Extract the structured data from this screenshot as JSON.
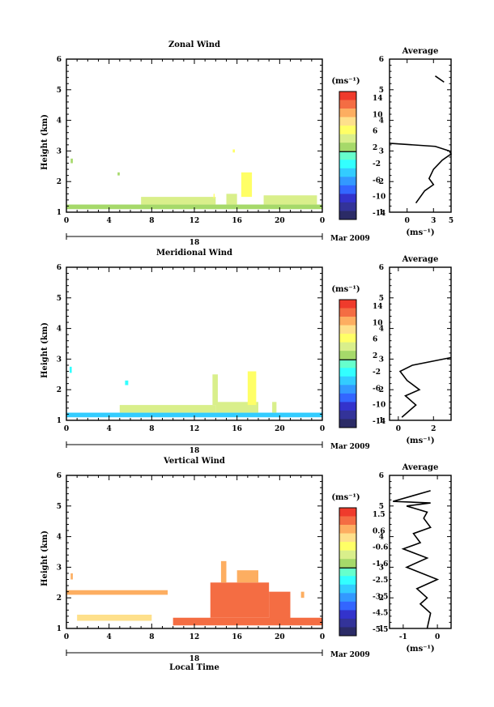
{
  "panels": [
    {
      "title": "Zonal Wind",
      "ylabel": "Height (km)",
      "yticks": [
        "1",
        "2",
        "3",
        "4",
        "5",
        "6"
      ],
      "xticks": [
        "0",
        "4",
        "8",
        "12",
        "16",
        "20",
        "0"
      ],
      "date_day": "18",
      "date_month": "Mar 2009",
      "cb_unit": "(ms⁻¹)",
      "cb_ticks": [
        "14",
        "10",
        "6",
        "2",
        "-2",
        "-6",
        "-10",
        "-14"
      ],
      "avg_title": "Average",
      "avg_xticks": [
        "0",
        "3",
        "5"
      ],
      "avg_unit": "(ms⁻¹)"
    },
    {
      "title": "Meridional Wind",
      "ylabel": "Height (km)",
      "yticks": [
        "1",
        "2",
        "3",
        "4",
        "5",
        "6"
      ],
      "xticks": [
        "0",
        "4",
        "8",
        "12",
        "16",
        "20",
        "0"
      ],
      "date_day": "18",
      "date_month": "Mar 2009",
      "cb_unit": "(ms⁻¹)",
      "cb_ticks": [
        "14",
        "10",
        "6",
        "2",
        "-2",
        "-6",
        "-10",
        "-14"
      ],
      "avg_title": "Average",
      "avg_xticks": [
        "0",
        "2"
      ],
      "avg_unit": "(ms⁻¹)"
    },
    {
      "title": "Vertical Wind",
      "ylabel": "Height (km)",
      "yticks": [
        "1",
        "2",
        "3",
        "4",
        "5",
        "6"
      ],
      "xticks": [
        "0",
        "4",
        "8",
        "12",
        "16",
        "20",
        "0"
      ],
      "date_day": "18",
      "date_month": "Mar 2009",
      "xlabel": "Local Time",
      "cb_unit": "(ms⁻¹)",
      "cb_ticks": [
        "1.5",
        "0.6",
        "-0.6",
        "-1.6",
        "-2.5",
        "-3.5",
        "-4.5",
        "-5.5"
      ],
      "avg_title": "Average",
      "avg_xticks": [
        "-1",
        "0"
      ],
      "avg_unit": "(ms⁻¹)"
    }
  ],
  "colorbar_colors": [
    "#ef3b2c",
    "#f46d43",
    "#fdae61",
    "#fee08b",
    "#ffff66",
    "#d9ef8b",
    "#a6d96a",
    "#66ffcc",
    "#33ffff",
    "#33ccff",
    "#3399ff",
    "#3366ff",
    "#3333cc",
    "#333399",
    "#2b2b66"
  ],
  "chart_data": [
    {
      "type": "heatmap",
      "title": "Zonal Wind",
      "xlabel": "",
      "ylabel": "Height (km)",
      "xlim": [
        0,
        24
      ],
      "ylim": [
        1,
        6
      ],
      "colorbar_range": [
        -14,
        14
      ],
      "regions": [
        {
          "t0": 0.0,
          "t1": 24.0,
          "h0": 1.1,
          "h1": 1.25,
          "value": 2
        },
        {
          "t0": 7.0,
          "t1": 14.0,
          "h0": 1.25,
          "h1": 1.5,
          "value": 3
        },
        {
          "t0": 18.5,
          "t1": 23.5,
          "h0": 1.25,
          "h1": 1.55,
          "value": 3
        },
        {
          "t0": 16.4,
          "t1": 17.4,
          "h0": 1.5,
          "h1": 2.3,
          "value": 5
        },
        {
          "t0": 15.0,
          "t1": 16.0,
          "h0": 1.25,
          "h1": 1.6,
          "value": 4
        },
        {
          "t0": 0.4,
          "t1": 0.6,
          "h0": 2.6,
          "h1": 2.75,
          "value": 2
        },
        {
          "t0": 4.8,
          "t1": 5.0,
          "h0": 2.2,
          "h1": 2.3,
          "value": 1
        },
        {
          "t0": 15.6,
          "t1": 15.8,
          "h0": 2.95,
          "h1": 3.05,
          "value": 5
        },
        {
          "t0": 13.8,
          "t1": 13.9,
          "h0": 1.45,
          "h1": 1.6,
          "value": 6
        }
      ],
      "average_profile": {
        "xlim": [
          -2,
          5
        ],
        "x": [
          1,
          2,
          3,
          2.5,
          3,
          4,
          5,
          4.8,
          3.2,
          -2
        ],
        "y": [
          1.3,
          1.7,
          1.9,
          2.1,
          2.4,
          2.7,
          2.9,
          3.0,
          3.15,
          3.25
        ],
        "upper_x": [
          3.2,
          4.2
        ],
        "upper_y": [
          5.45,
          5.25
        ]
      }
    },
    {
      "type": "heatmap",
      "title": "Meridional Wind",
      "xlabel": "",
      "ylabel": "Height (km)",
      "xlim": [
        0,
        24
      ],
      "ylim": [
        1,
        6
      ],
      "colorbar_range": [
        -14,
        14
      ],
      "regions": [
        {
          "t0": 0.0,
          "t1": 24.0,
          "h0": 1.1,
          "h1": 1.25,
          "value": -3
        },
        {
          "t0": 5.0,
          "t1": 14.0,
          "h0": 1.25,
          "h1": 1.5,
          "value": 3
        },
        {
          "t0": 14.0,
          "t1": 18.0,
          "h0": 1.25,
          "h1": 1.6,
          "value": 4
        },
        {
          "t0": 17.0,
          "t1": 17.8,
          "h0": 1.5,
          "h1": 2.6,
          "value": 5
        },
        {
          "t0": 13.7,
          "t1": 14.2,
          "h0": 1.5,
          "h1": 2.5,
          "value": 3
        },
        {
          "t0": 0.3,
          "t1": 0.5,
          "h0": 2.55,
          "h1": 2.75,
          "value": -2
        },
        {
          "t0": 5.5,
          "t1": 5.8,
          "h0": 2.15,
          "h1": 2.3,
          "value": -2
        },
        {
          "t0": 19.3,
          "t1": 19.7,
          "h0": 1.25,
          "h1": 1.6,
          "value": 4
        }
      ],
      "average_profile": {
        "xlim": [
          -0.5,
          3
        ],
        "x": [
          0.2,
          1.0,
          0.4,
          1.2,
          0.5,
          0.1,
          0.8,
          3.0
        ],
        "y": [
          1.1,
          1.5,
          1.8,
          2.0,
          2.3,
          2.6,
          2.8,
          3.05
        ]
      }
    },
    {
      "type": "heatmap",
      "title": "Vertical Wind",
      "xlabel": "Local Time",
      "ylabel": "Height (km)",
      "xlim": [
        0,
        24
      ],
      "ylim": [
        1,
        6
      ],
      "colorbar_range": [
        -5.5,
        1.5
      ],
      "regions": [
        {
          "t0": 0.0,
          "t1": 9.5,
          "h0": 2.1,
          "h1": 2.25,
          "value": 0.4
        },
        {
          "t0": 0.4,
          "t1": 0.6,
          "h0": 2.6,
          "h1": 2.8,
          "value": 0.4
        },
        {
          "t0": 1.0,
          "t1": 8.0,
          "h0": 1.25,
          "h1": 1.45,
          "value": 0.0
        },
        {
          "t0": 10.0,
          "t1": 24.0,
          "h0": 1.1,
          "h1": 1.35,
          "value": 1.0
        },
        {
          "t0": 13.5,
          "t1": 19.0,
          "h0": 1.35,
          "h1": 2.5,
          "value": 0.7
        },
        {
          "t0": 14.5,
          "t1": 15.0,
          "h0": 2.5,
          "h1": 3.2,
          "value": 0.5
        },
        {
          "t0": 16.0,
          "t1": 18.0,
          "h0": 2.5,
          "h1": 2.9,
          "value": 0.5
        },
        {
          "t0": 19.0,
          "t1": 21.0,
          "h0": 1.3,
          "h1": 2.2,
          "value": 0.6
        },
        {
          "t0": 22.0,
          "t1": 22.3,
          "h0": 2.0,
          "h1": 2.2,
          "value": 0.4
        }
      ],
      "average_profile": {
        "xlim": [
          -1.4,
          0.4
        ],
        "x": [
          -0.3,
          -0.2,
          -0.5,
          -0.3,
          -0.6,
          0.0,
          -0.9,
          -0.3,
          -1.0,
          -0.5,
          -0.7,
          -0.2,
          -0.4,
          -0.3,
          -0.9,
          -0.2,
          -1.3,
          -0.2
        ],
        "y": [
          1.0,
          1.5,
          1.8,
          2.0,
          2.3,
          2.6,
          3.0,
          3.3,
          3.6,
          3.8,
          4.1,
          4.3,
          4.6,
          4.8,
          5.0,
          5.1,
          5.15,
          5.5
        ]
      }
    }
  ]
}
